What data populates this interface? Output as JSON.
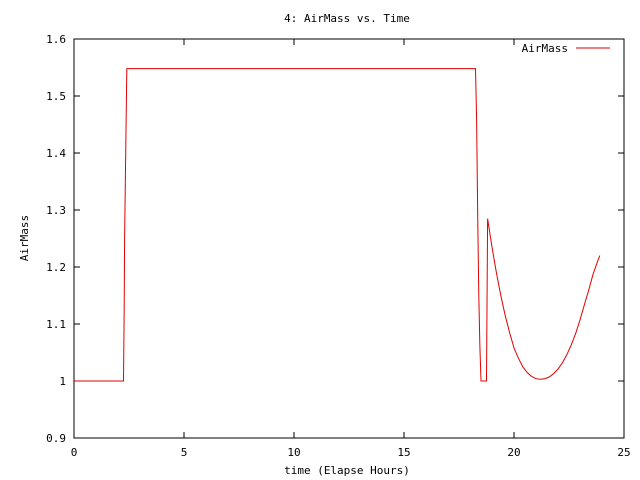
{
  "chart_data": {
    "type": "line",
    "title": "4: AirMass vs. Time",
    "xlabel": "time (Elapse Hours)",
    "ylabel": "AirMass",
    "xlim": [
      0,
      25
    ],
    "ylim": [
      0.9,
      1.6
    ],
    "xticks": [
      0,
      5,
      10,
      15,
      20,
      25
    ],
    "yticks": [
      0.9,
      1,
      1.1,
      1.2,
      1.3,
      1.4,
      1.5,
      1.6
    ],
    "xtick_labels": [
      "0",
      "5",
      "10",
      "15",
      "20",
      "25"
    ],
    "ytick_labels": [
      "0.9",
      "1",
      "1.1",
      "1.2",
      "1.3",
      "1.4",
      "1.5",
      "1.6"
    ],
    "grid": false,
    "legend_position": "top-right",
    "colors": {
      "series": "#e00000",
      "axes": "#000000",
      "background": "#ffffff"
    },
    "series": [
      {
        "name": "AirMass",
        "x": [
          0,
          2.25,
          2.28,
          2.3,
          2.35,
          2.4,
          5,
          10,
          15,
          18.25,
          18.3,
          18.35,
          18.4,
          18.45,
          18.5,
          18.55,
          18.7,
          18.75,
          18.8,
          18.9,
          19.0,
          19.2,
          19.4,
          19.6,
          19.8,
          20.0,
          20.2,
          20.4,
          20.6,
          20.8,
          21.0,
          21.2,
          21.4,
          21.6,
          21.8,
          22.0,
          22.2,
          22.4,
          22.6,
          22.8,
          23.0,
          23.2,
          23.4,
          23.6,
          23.8,
          23.9
        ],
        "y": [
          1.0,
          1.0,
          1.13,
          1.25,
          1.4,
          1.548,
          1.548,
          1.548,
          1.548,
          1.548,
          1.46,
          1.29,
          1.15,
          1.06,
          1.0,
          1.0,
          1.0,
          1.0,
          1.285,
          1.26,
          1.235,
          1.19,
          1.15,
          1.115,
          1.085,
          1.058,
          1.04,
          1.025,
          1.015,
          1.008,
          1.004,
          1.003,
          1.004,
          1.007,
          1.013,
          1.021,
          1.032,
          1.046,
          1.063,
          1.083,
          1.107,
          1.134,
          1.16,
          1.188,
          1.21,
          1.22
        ]
      }
    ]
  }
}
